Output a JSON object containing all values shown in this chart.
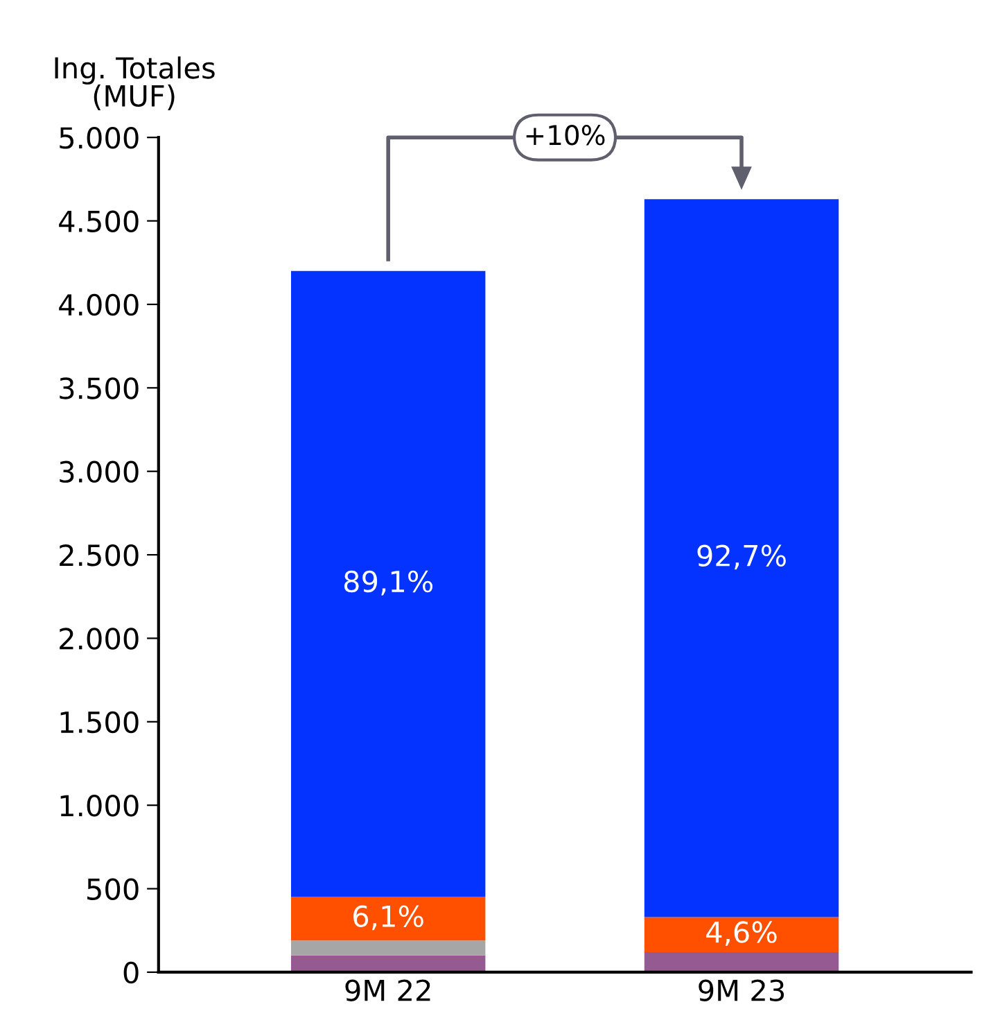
{
  "chart_data": {
    "type": "bar",
    "stacked": true,
    "ylabel": "Ing. Totales\n(MUF)",
    "categories": [
      "9M 22",
      "9M 23"
    ],
    "series": [
      {
        "color": "#955a92",
        "values": [
          100,
          120
        ]
      },
      {
        "color": "#a6a6a6",
        "values": [
          90,
          0
        ]
      },
      {
        "color": "#ff5000",
        "values": [
          260,
          210
        ]
      },
      {
        "color": "#0433ff",
        "values": [
          3750,
          4300
        ]
      }
    ],
    "ylim": [
      0,
      5000
    ],
    "yticks": [
      {
        "value": 0,
        "label": "0"
      },
      {
        "value": 500,
        "label": "500"
      },
      {
        "value": 1000,
        "label": "1.000"
      },
      {
        "value": 1500,
        "label": "1.500"
      },
      {
        "value": 2000,
        "label": "2.000"
      },
      {
        "value": 2500,
        "label": "2.500"
      },
      {
        "value": 3000,
        "label": "3.000"
      },
      {
        "value": 3500,
        "label": "3.500"
      },
      {
        "value": 4000,
        "label": "4.000"
      },
      {
        "value": 4500,
        "label": "4.500"
      },
      {
        "value": 5000,
        "label": "5.000"
      }
    ],
    "annotations": [
      "+10%",
      "6,1%",
      "89,1%",
      "4,6%",
      "92,7%"
    ],
    "grid": false,
    "legend": false
  }
}
